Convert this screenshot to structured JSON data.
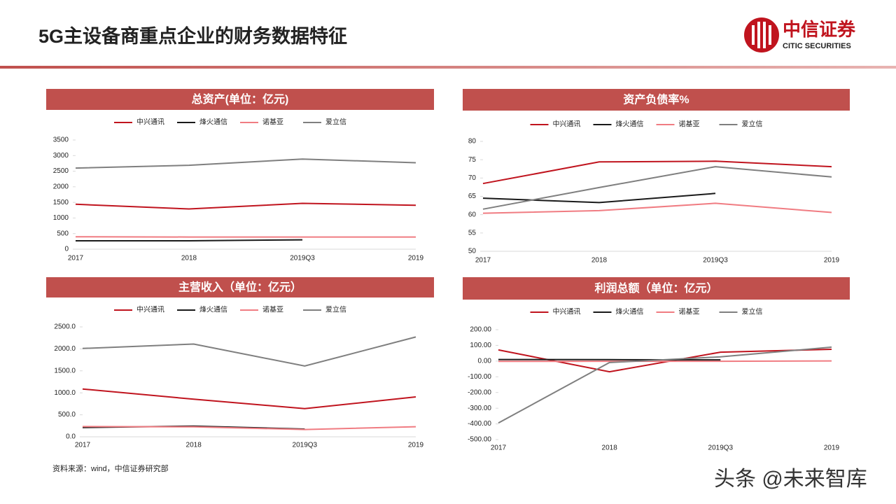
{
  "title": "5G主设备商重点企业的财务数据特征",
  "logo": {
    "name": "中信证券",
    "english": "CITIC SECURITIES"
  },
  "source": "资料来源：wind，中信证券研究部",
  "watermark": "头条 @未来智库",
  "chart_data": [
    {
      "type": "line",
      "title": "总资产(单位：亿元)",
      "categories": [
        "2017",
        "2018",
        "2019Q3",
        "2019"
      ],
      "ylim": [
        0,
        3500
      ],
      "yticks": [
        0,
        500,
        1000,
        1500,
        2000,
        2500,
        3000,
        3500
      ],
      "series": [
        {
          "name": "中兴通讯",
          "color": "#c0141e",
          "values": [
            1440,
            1290,
            1470,
            1410
          ]
        },
        {
          "name": "烽火通信",
          "color": "#1a1a1a",
          "values": [
            270,
            270,
            300,
            null
          ]
        },
        {
          "name": "诺基亚",
          "color": "#f07c82",
          "values": [
            400,
            390,
            390,
            390
          ]
        },
        {
          "name": "爱立信",
          "color": "#7f7f7f",
          "values": [
            2600,
            2690,
            2890,
            2770
          ]
        }
      ]
    },
    {
      "type": "line",
      "title": "资产负债率%",
      "categories": [
        "2017",
        "2018",
        "2019Q3",
        "2019"
      ],
      "ylim": [
        50,
        80
      ],
      "yticks": [
        50,
        55,
        60,
        65,
        70,
        75,
        80
      ],
      "series": [
        {
          "name": "中兴通讯",
          "color": "#c0141e",
          "values": [
            68.5,
            74.4,
            74.6,
            73.1
          ]
        },
        {
          "name": "烽火通信",
          "color": "#1a1a1a",
          "values": [
            64.5,
            63.3,
            65.8,
            null
          ]
        },
        {
          "name": "诺基亚",
          "color": "#f07c82",
          "values": [
            60.4,
            61.1,
            63.1,
            60.6
          ]
        },
        {
          "name": "爱立信",
          "color": "#7f7f7f",
          "values": [
            61.5,
            67.4,
            73.1,
            70.3
          ]
        }
      ]
    },
    {
      "type": "line",
      "title": "主营收入（单位：亿元）",
      "categories": [
        "2017",
        "2018",
        "2019Q3",
        "2019"
      ],
      "ylim": [
        0,
        2500
      ],
      "yticks": [
        {
          "value": 0,
          "label": "0.0"
        },
        {
          "value": 500,
          "label": "500.0"
        },
        {
          "value": 1000,
          "label": "1000.0"
        },
        {
          "value": 1500,
          "label": "1500.0"
        },
        {
          "value": 2000,
          "label": "2000.0"
        },
        {
          "value": 2500,
          "label": "2500.0"
        }
      ],
      "series": [
        {
          "name": "中兴通讯",
          "color": "#c0141e",
          "values": [
            1088,
            855,
            640,
            907
          ]
        },
        {
          "name": "烽火通信",
          "color": "#1a1a1a",
          "values": [
            210,
            243,
            175,
            null
          ]
        },
        {
          "name": "诺基亚",
          "color": "#f07c82",
          "values": [
            232,
            226,
            165,
            230
          ]
        },
        {
          "name": "爱立信",
          "color": "#7f7f7f",
          "values": [
            2010,
            2110,
            1610,
            2270
          ]
        }
      ]
    },
    {
      "type": "line",
      "title": "利润总额（单位：亿元）",
      "categories": [
        "2017",
        "2018",
        "2019Q3",
        "2019"
      ],
      "ylim": [
        -500,
        200
      ],
      "yticks": [
        {
          "value": -500,
          "label": "-500.00"
        },
        {
          "value": -400,
          "label": "-400.00"
        },
        {
          "value": -300,
          "label": "-300.00"
        },
        {
          "value": -200,
          "label": "-200.00"
        },
        {
          "value": -100,
          "label": "-100.00"
        },
        {
          "value": 0,
          "label": "0.00"
        },
        {
          "value": 100,
          "label": "100.00"
        },
        {
          "value": 200,
          "label": "200.00"
        }
      ],
      "series": [
        {
          "name": "中兴通讯",
          "color": "#c0141e",
          "values": [
            71,
            -68,
            57,
            75
          ]
        },
        {
          "name": "烽火通信",
          "color": "#1a1a1a",
          "values": [
            10,
            9,
            8,
            null
          ]
        },
        {
          "name": "诺基亚",
          "color": "#f07c82",
          "values": [
            -2,
            -1,
            -1,
            1
          ]
        },
        {
          "name": "爱立信",
          "color": "#7f7f7f",
          "values": [
            -394,
            -9,
            27,
            89
          ]
        }
      ]
    }
  ]
}
